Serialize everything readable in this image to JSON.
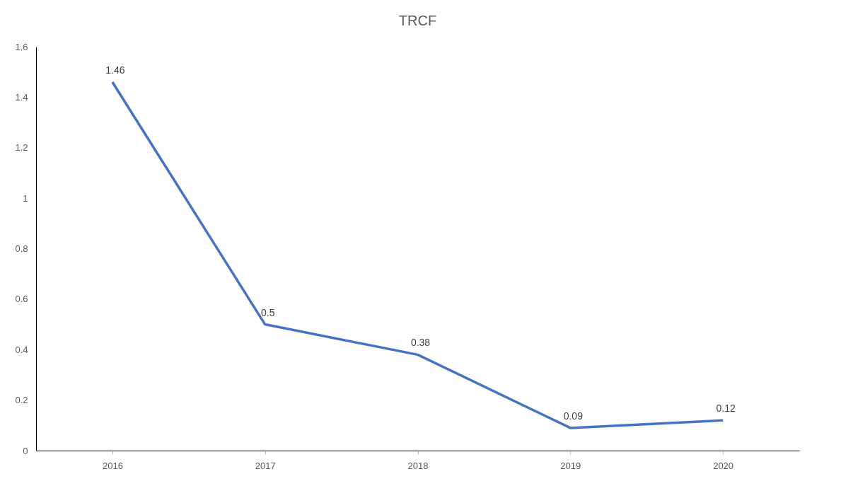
{
  "chart_data": {
    "type": "line",
    "title": "TRCF",
    "categories": [
      "2016",
      "2017",
      "2018",
      "2019",
      "2020"
    ],
    "series": [
      {
        "color": "#4472c4",
        "values": [
          1.46,
          0.5,
          0.38,
          0.09,
          0.12
        ]
      }
    ],
    "ylim": [
      0,
      1.6
    ],
    "yticks": [
      0,
      0.2,
      0.4,
      0.6,
      0.8,
      1,
      1.2,
      1.4,
      1.6
    ],
    "legend": false,
    "data_labels": true,
    "grid": false,
    "marker": "none",
    "line_style": "solid"
  }
}
